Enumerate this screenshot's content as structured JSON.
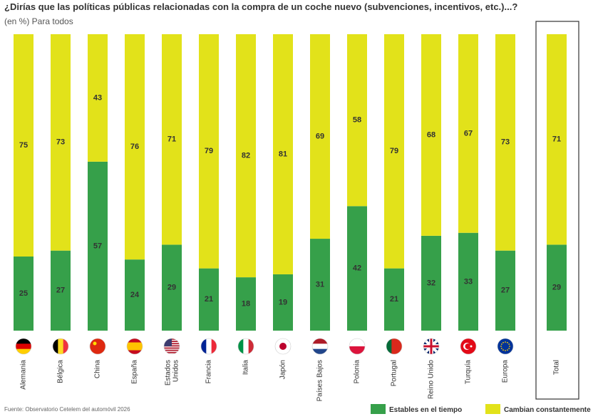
{
  "chart_data": {
    "type": "stacked_bar",
    "title": "¿Dirías que las políticas públicas relacionadas con la compra de un coche nuevo (subvenciones, incentivos, etc.)...?",
    "subtitle": "(en %) Para todos",
    "source": "Fuente: Observatorio Cetelem del automóvil 2026",
    "categories": [
      "Alemania",
      "Bélgica",
      "China",
      "España",
      "Estados Unidos",
      "Francia",
      "Italia",
      "Japón",
      "Países Bajos",
      "Polonia",
      "Portugal",
      "Reino Unido",
      "Turquía",
      "Europa",
      "Total"
    ],
    "series": [
      {
        "name": "Estables en el tiempo",
        "color": "#36a04a",
        "values": [
          25,
          27,
          57,
          24,
          29,
          21,
          18,
          19,
          31,
          42,
          21,
          32,
          33,
          27,
          29
        ]
      },
      {
        "name": "Cambian constantemente",
        "color": "#e2e21a",
        "values": [
          75,
          73,
          43,
          76,
          71,
          79,
          82,
          81,
          69,
          58,
          79,
          68,
          67,
          73,
          71
        ]
      }
    ],
    "ylim": [
      0,
      100
    ]
  }
}
